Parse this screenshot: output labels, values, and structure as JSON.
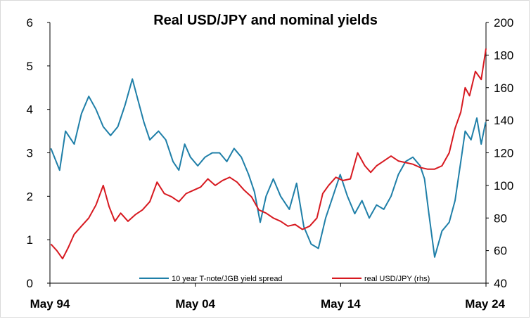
{
  "chart_data": {
    "type": "line",
    "title": "Real USD/JPY and nominal yields",
    "xlabel": "",
    "ylabel": "",
    "x_ticks": [
      "May 94",
      "May 04",
      "May 14",
      "May 24"
    ],
    "x_range": [
      1994.33,
      2024.33
    ],
    "y_left": {
      "range": [
        0,
        6
      ],
      "ticks": [
        "0",
        "1",
        "2",
        "3",
        "4",
        "5",
        "6"
      ]
    },
    "y_right": {
      "range": [
        40,
        200
      ],
      "ticks": [
        "40",
        "60",
        "80",
        "100",
        "120",
        "140",
        "160",
        "180",
        "200"
      ]
    },
    "grid": false,
    "legend_position": "bottom",
    "series": [
      {
        "name": "10 year T-note/JGB yield spread",
        "axis": "left",
        "color": "#1f7fa8",
        "x": [
          1994.4,
          1995.0,
          1995.4,
          1996.0,
          1996.5,
          1997.0,
          1997.5,
          1998.0,
          1998.5,
          1999.0,
          1999.5,
          2000.0,
          2000.4,
          2000.8,
          2001.2,
          2001.8,
          2002.3,
          2002.8,
          2003.2,
          2003.6,
          2004.0,
          2004.5,
          2005.0,
          2005.5,
          2006.0,
          2006.5,
          2007.0,
          2007.5,
          2008.0,
          2008.4,
          2008.8,
          2009.2,
          2009.7,
          2010.2,
          2010.8,
          2011.3,
          2011.8,
          2012.3,
          2012.8,
          2013.3,
          2013.8,
          2014.3,
          2014.8,
          2015.3,
          2015.8,
          2016.3,
          2016.8,
          2017.3,
          2017.8,
          2018.3,
          2018.8,
          2019.3,
          2019.8,
          2020.1,
          2020.4,
          2020.8,
          2021.3,
          2021.8,
          2022.2,
          2022.6,
          2022.9,
          2023.3,
          2023.7,
          2024.0,
          2024.3
        ],
        "values": [
          3.1,
          2.6,
          3.5,
          3.2,
          3.9,
          4.3,
          4.0,
          3.6,
          3.4,
          3.6,
          4.1,
          4.7,
          4.2,
          3.7,
          3.3,
          3.5,
          3.3,
          2.8,
          2.6,
          3.2,
          2.9,
          2.7,
          2.9,
          3.0,
          3.0,
          2.8,
          3.1,
          2.9,
          2.5,
          2.1,
          1.4,
          2.0,
          2.4,
          2.0,
          1.7,
          2.3,
          1.3,
          0.9,
          0.8,
          1.5,
          2.0,
          2.5,
          2.0,
          1.6,
          1.9,
          1.5,
          1.8,
          1.7,
          2.0,
          2.5,
          2.8,
          2.9,
          2.7,
          2.4,
          1.6,
          0.6,
          1.2,
          1.4,
          1.9,
          2.8,
          3.5,
          3.3,
          3.8,
          3.2,
          3.7
        ]
      },
      {
        "name": "real USD/JPY (rhs)",
        "axis": "right",
        "color": "#d71920",
        "x": [
          1994.4,
          1994.8,
          1995.2,
          1995.6,
          1996.0,
          1996.5,
          1997.0,
          1997.5,
          1998.0,
          1998.4,
          1998.8,
          1999.2,
          1999.7,
          2000.2,
          2000.7,
          2001.2,
          2001.7,
          2002.2,
          2002.7,
          2003.2,
          2003.7,
          2004.2,
          2004.7,
          2005.2,
          2005.7,
          2006.2,
          2006.7,
          2007.2,
          2007.7,
          2008.2,
          2008.7,
          2009.2,
          2009.7,
          2010.2,
          2010.7,
          2011.2,
          2011.7,
          2012.2,
          2012.7,
          2013.1,
          2013.5,
          2014.0,
          2014.5,
          2015.0,
          2015.5,
          2016.0,
          2016.4,
          2016.8,
          2017.3,
          2017.8,
          2018.3,
          2018.8,
          2019.3,
          2019.8,
          2020.3,
          2020.8,
          2021.3,
          2021.8,
          2022.2,
          2022.6,
          2022.9,
          2023.2,
          2023.6,
          2024.0,
          2024.33
        ],
        "values": [
          64,
          60,
          55,
          62,
          70,
          75,
          80,
          88,
          100,
          87,
          78,
          83,
          78,
          82,
          85,
          90,
          102,
          95,
          93,
          90,
          95,
          97,
          99,
          104,
          100,
          103,
          105,
          102,
          97,
          93,
          85,
          83,
          80,
          78,
          75,
          76,
          73,
          75,
          80,
          95,
          100,
          105,
          103,
          104,
          120,
          112,
          108,
          112,
          115,
          118,
          115,
          114,
          113,
          111,
          110,
          110,
          112,
          120,
          135,
          145,
          160,
          155,
          170,
          165,
          184
        ]
      }
    ]
  },
  "legend": {
    "spread_label": "10 year T-note/JGB yield spread",
    "usdjpy_label": "real USD/JPY (rhs)"
  }
}
